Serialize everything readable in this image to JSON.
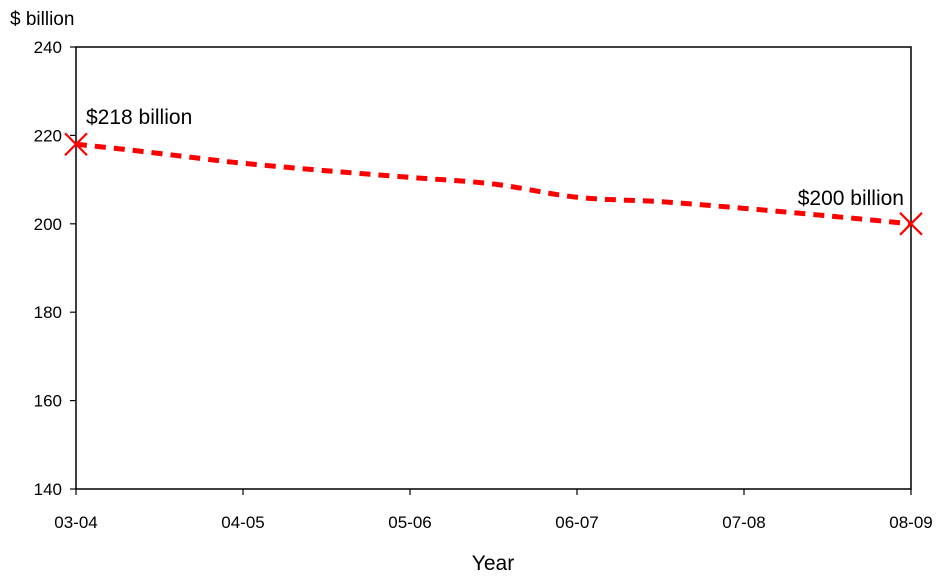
{
  "chart_data": {
    "type": "line",
    "title": "",
    "xlabel": "Year",
    "ylabel": "$ billion",
    "categories": [
      "03-04",
      "04-05",
      "05-06",
      "06-07",
      "07-08",
      "08-09"
    ],
    "ylim": [
      140,
      240
    ],
    "yticks": [
      140,
      160,
      180,
      200,
      220,
      240
    ],
    "grid": false,
    "series": [
      {
        "name": "",
        "color": "#ff0000",
        "line_style": "dashed",
        "x": [
          0,
          0.3,
          0.7,
          1.0,
          1.5,
          2.0,
          2.5,
          3.0,
          3.5,
          4.0,
          4.5,
          5.0
        ],
        "values": [
          218,
          216.8,
          215,
          213.7,
          212,
          210.5,
          209,
          206,
          205,
          203.5,
          201.8,
          200
        ]
      }
    ],
    "markers": [
      {
        "x": 0,
        "value": 218,
        "symbol": "x",
        "label": "$218 billion"
      },
      {
        "x": 5,
        "value": 200,
        "symbol": "x",
        "label": "$200 billion"
      }
    ]
  }
}
